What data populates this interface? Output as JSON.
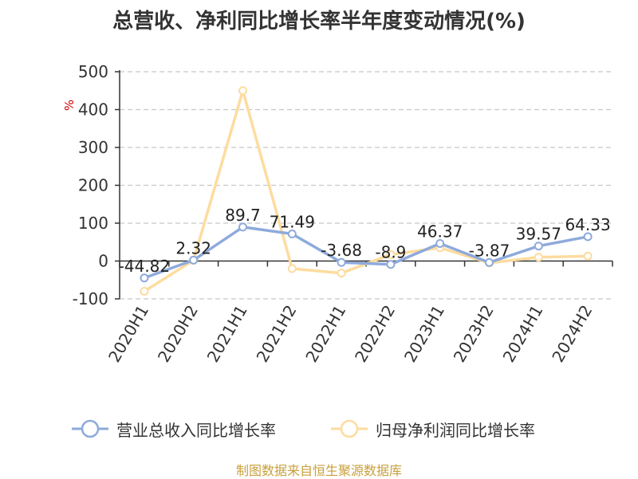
{
  "chart_data": {
    "type": "line",
    "title": "总营收、净利同比增长率半年度变动情况(%)",
    "ylabel": "%",
    "categories": [
      "2020H1",
      "2020H2",
      "2021H1",
      "2021H2",
      "2022H1",
      "2022H2",
      "2023H1",
      "2023H2",
      "2024H1",
      "2024H2"
    ],
    "y_ticks": [
      500,
      400,
      300,
      200,
      100,
      0,
      -100
    ],
    "ylim": [
      -100,
      500
    ],
    "grid": true,
    "legend_position": "bottom",
    "series": [
      {
        "name": "营业总收入同比增长率",
        "color": "#8eaadb",
        "values": [
          -44.82,
          2.32,
          89.7,
          71.49,
          -3.68,
          -8.9,
          46.37,
          -3.87,
          39.57,
          64.33
        ],
        "labels": [
          "-44.82",
          "2.32",
          "89.7",
          "71.49",
          "-3.68",
          "-8.9",
          "46.37",
          "-3.87",
          "39.57",
          "64.33"
        ]
      },
      {
        "name": "归母净利润同比增长率",
        "color": "#fddc9f",
        "values": [
          -80,
          2,
          450,
          -20,
          -32,
          17,
          35,
          -5,
          10,
          13
        ]
      }
    ]
  },
  "source": "制图数据来自恒生聚源数据库"
}
